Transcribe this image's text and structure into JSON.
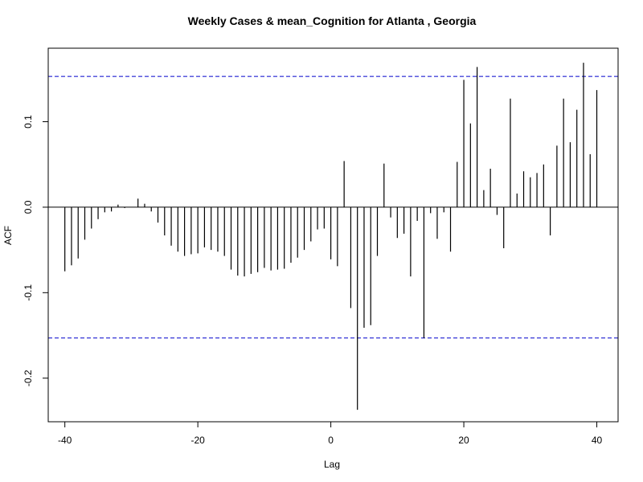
{
  "chart_data": {
    "type": "bar",
    "title": "Weekly Cases & mean_Cognition for Atlanta , Georgia",
    "xlabel": "Lag",
    "ylabel": "ACF",
    "xlim": [
      -42.5,
      43.2
    ],
    "ylim": [
      -0.251,
      0.186
    ],
    "x_ticks": [
      -40,
      -20,
      0,
      20,
      40
    ],
    "x_tick_labels": [
      "-40",
      "-20",
      "0",
      "20",
      "40"
    ],
    "y_ticks": [
      -0.2,
      -0.1,
      0.0,
      0.1
    ],
    "y_tick_labels": [
      "-0.2",
      "-0.1",
      "0.0",
      "0.1"
    ],
    "confidence_bounds": [
      0.153,
      -0.153
    ],
    "confidence_color": "#0000cc",
    "bar_color": "#000000",
    "lags": [
      -40,
      -39,
      -38,
      -37,
      -36,
      -35,
      -34,
      -33,
      -32,
      -31,
      -30,
      -29,
      -28,
      -27,
      -26,
      -25,
      -24,
      -23,
      -22,
      -21,
      -20,
      -19,
      -18,
      -17,
      -16,
      -15,
      -14,
      -13,
      -12,
      -11,
      -10,
      -9,
      -8,
      -7,
      -6,
      -5,
      -4,
      -3,
      -2,
      -1,
      0,
      1,
      2,
      3,
      4,
      5,
      6,
      7,
      8,
      9,
      10,
      11,
      12,
      13,
      14,
      15,
      16,
      17,
      18,
      19,
      20,
      21,
      22,
      23,
      24,
      25,
      26,
      27,
      28,
      29,
      30,
      31,
      32,
      33,
      34,
      35,
      36,
      37,
      38,
      39,
      40
    ],
    "values": [
      -0.075,
      -0.068,
      -0.06,
      -0.038,
      -0.025,
      -0.014,
      -0.006,
      -0.005,
      0.003,
      -0.001,
      0.0,
      0.01,
      0.004,
      -0.005,
      -0.018,
      -0.033,
      -0.045,
      -0.052,
      -0.057,
      -0.055,
      -0.054,
      -0.047,
      -0.05,
      -0.052,
      -0.057,
      -0.073,
      -0.08,
      -0.081,
      -0.078,
      -0.076,
      -0.071,
      -0.074,
      -0.073,
      -0.072,
      -0.065,
      -0.059,
      -0.05,
      -0.04,
      -0.026,
      -0.025,
      -0.061,
      -0.069,
      0.054,
      -0.118,
      -0.237,
      -0.141,
      -0.138,
      -0.057,
      0.051,
      -0.012,
      -0.036,
      -0.031,
      -0.081,
      -0.016,
      -0.153,
      -0.007,
      -0.037,
      -0.006,
      -0.052,
      0.053,
      0.149,
      0.098,
      0.164,
      0.02,
      0.045,
      -0.009,
      -0.048,
      0.127,
      0.016,
      0.042,
      0.035,
      0.04,
      0.05,
      -0.033,
      0.072,
      0.127,
      0.076,
      0.114,
      0.169,
      0.062,
      0.137
    ]
  }
}
